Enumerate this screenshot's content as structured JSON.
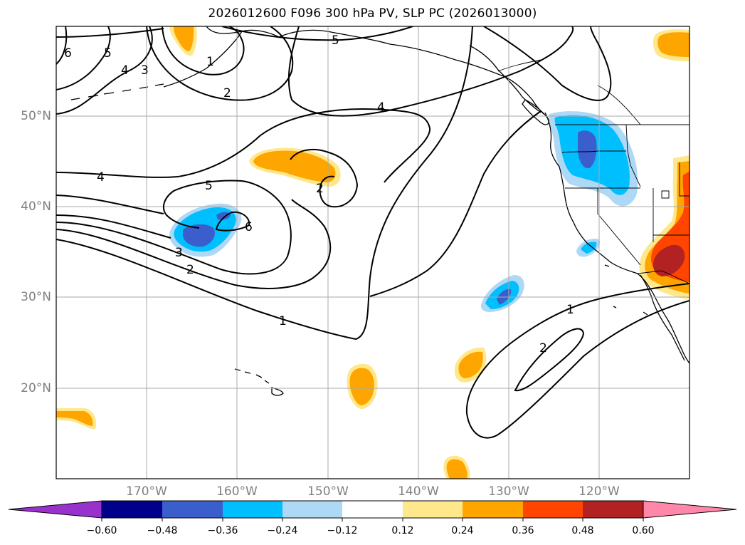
{
  "title": "2026012600 F096 300 hPa PV, SLP PC (2026013000)",
  "longitude_labels": [
    "170°W",
    "160°W",
    "150°W",
    "140°W",
    "130°W",
    "120°W"
  ],
  "latitude_labels": [
    "50°N",
    "40°N",
    "30°N",
    "20°N"
  ],
  "colorbar": {
    "tick_labels": [
      "−0.60",
      "−0.48",
      "−0.36",
      "−0.24",
      "−0.12",
      "0.12",
      "0.24",
      "0.36",
      "0.48",
      "0.60"
    ],
    "colors": [
      "#9932CC",
      "#00008B",
      "#3A5FCD",
      "#00BFFF",
      "#ADD8F6",
      "#FFFFFF",
      "#FFE88C",
      "#FFA500",
      "#FF4500",
      "#B22222",
      "#FF88AA"
    ]
  },
  "contour_labels": [
    "6",
    "5",
    "4",
    "3",
    "1",
    "2",
    "5",
    "4",
    "4",
    "5",
    "6",
    "3",
    "2",
    "2",
    "1",
    "1",
    "2"
  ],
  "colors": {
    "ocean": "#ffffff",
    "grid": "#a9a9a9",
    "contour": "#000000",
    "pv_neg_light": "#ADD8F6",
    "pv_neg_mid": "#00BFFF",
    "pv_neg_dark": "#3A5FCD",
    "pv_pos_light": "#FFE88C",
    "pv_pos_mid": "#FFA500",
    "pv_pos_high": "#FF4500",
    "pv_pos_max": "#B22222"
  }
}
